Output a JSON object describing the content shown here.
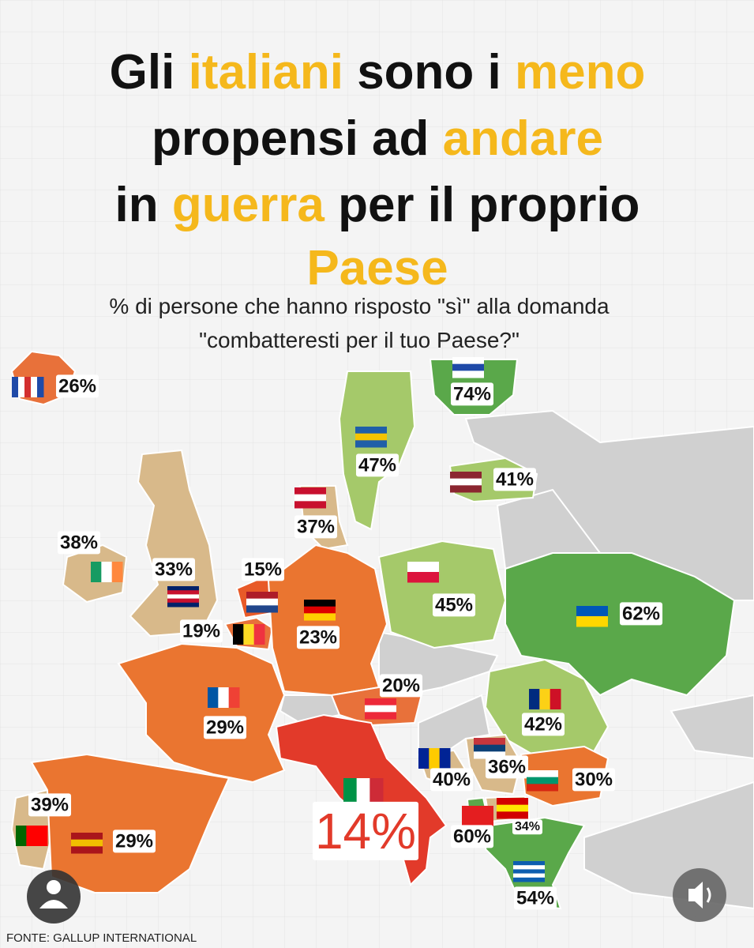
{
  "title": [
    [
      {
        "text": "Gli "
      },
      {
        "text": "italiani",
        "highlight": true
      },
      {
        "text": " sono i "
      },
      {
        "text": "meno",
        "highlight": true
      }
    ],
    [
      {
        "text": "propensi ad "
      },
      {
        "text": "andare",
        "highlight": true
      }
    ],
    [
      {
        "text": "in "
      },
      {
        "text": "guerra",
        "highlight": true
      },
      {
        "text": " per il proprio"
      }
    ],
    [
      {
        "text": "Paese",
        "highlight": true
      }
    ]
  ],
  "subtitle": [
    "% di persone che hanno risposto \"sì\" alla domanda",
    "\"combatteresti per il tuo Paese?\""
  ],
  "countries": [
    {
      "label": "26%",
      "color": "#e8713a"
    },
    {
      "label": "74%",
      "color": "#5aa84a"
    },
    {
      "label": "47%",
      "color": "#a5c96a"
    },
    {
      "label": "41%",
      "color": "#a5c96a"
    },
    {
      "label": "37%",
      "color": "#d8b98a"
    },
    {
      "label": "38%",
      "color": "#d8b98a"
    },
    {
      "label": "33%",
      "color": "#d8b98a"
    },
    {
      "label": "15%",
      "color": "#e85a28"
    },
    {
      "label": "19%",
      "color": "#e8713a"
    },
    {
      "label": "23%",
      "color": "#ea7530"
    },
    {
      "label": "45%",
      "color": "#a5c96a"
    },
    {
      "label": "62%",
      "color": "#5aa84a"
    },
    {
      "label": "29%",
      "color": "#ea7530"
    },
    {
      "label": "20%",
      "color": "#e8713a"
    },
    {
      "label": "42%",
      "color": "#a5c96a"
    },
    {
      "label": "14%",
      "color": "#e23a2a",
      "emphasis": true
    },
    {
      "label": "40%",
      "color": "#d8b98a"
    },
    {
      "label": "36%",
      "color": "#d8b98a"
    },
    {
      "label": "30%",
      "color": "#ea7530"
    },
    {
      "label": "60%",
      "color": "#5aa84a"
    },
    {
      "label": "34%",
      "color": "#d8b98a"
    },
    {
      "label": "54%",
      "color": "#5aa84a"
    },
    {
      "label": "39%",
      "color": "#d8b98a"
    },
    {
      "label": "29%",
      "color": "#ea7530"
    }
  ],
  "source": "FONTE: GALLUP INTERNATIONAL"
}
